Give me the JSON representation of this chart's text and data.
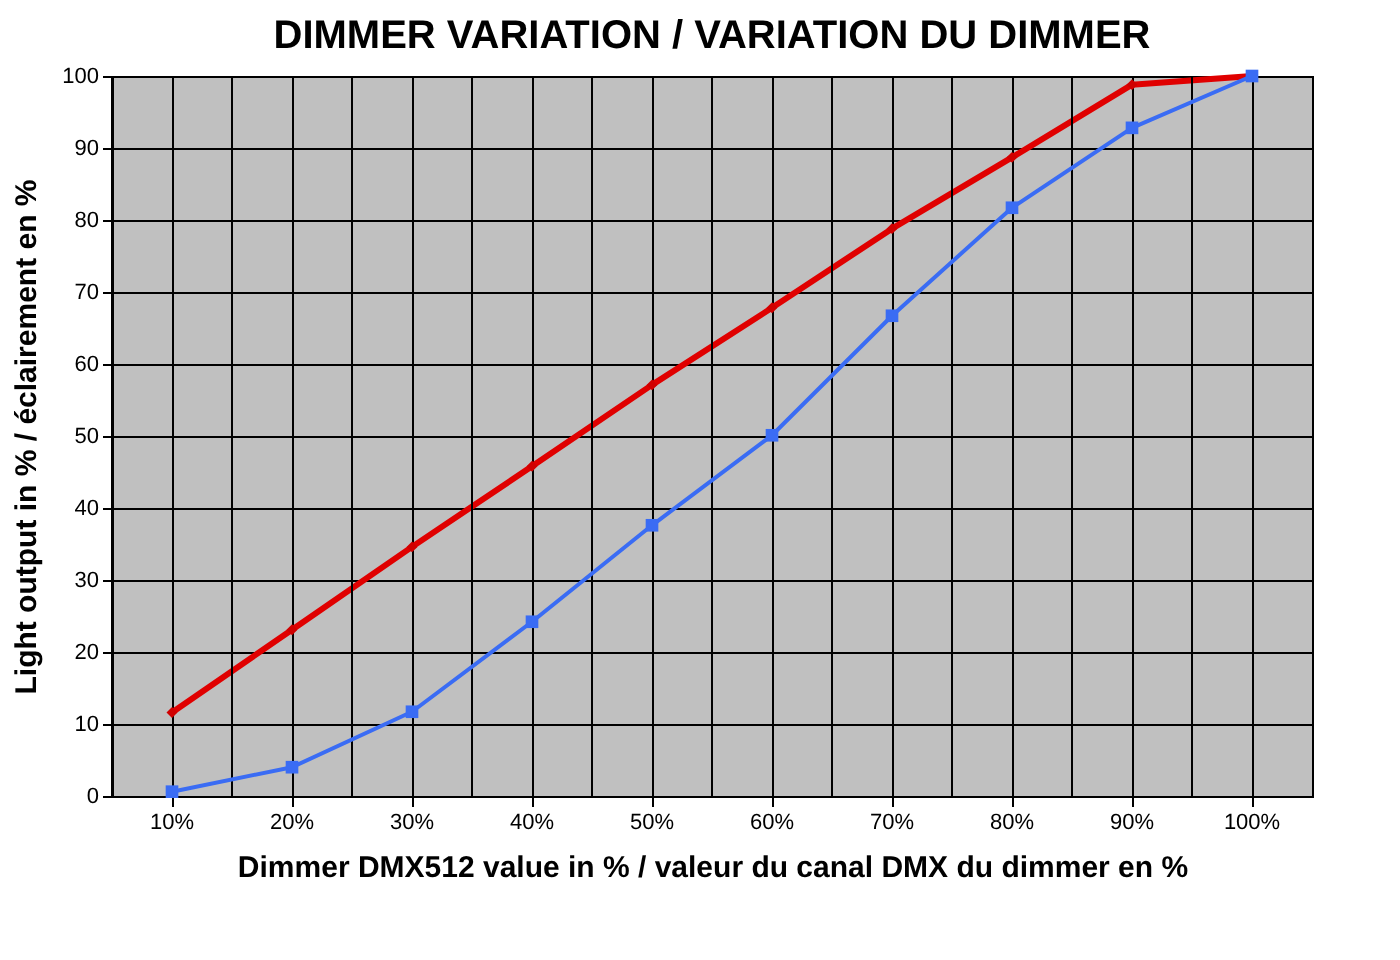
{
  "chart_data": {
    "type": "line",
    "title": "DIMMER VARIATION / VARIATION DU DIMMER",
    "xlabel": "Dimmer DMX512 value in % / valeur du canal DMX du dimmer en %",
    "ylabel": "Light output in % / éclairement en %",
    "categories": [
      "10%",
      "20%",
      "30%",
      "40%",
      "50%",
      "60%",
      "70%",
      "80%",
      "90%",
      "100%"
    ],
    "series": [
      {
        "color": "#e00000",
        "marker": "diamond",
        "values": [
          11.6,
          23.1,
          34.6,
          45.8,
          57.1,
          67.8,
          78.8,
          88.7,
          98.8,
          100
        ]
      },
      {
        "color": "#3a6cf4",
        "marker": "square",
        "values": [
          0.6,
          4.0,
          11.7,
          24.2,
          37.6,
          50.1,
          66.7,
          81.7,
          92.8,
          100
        ]
      }
    ],
    "ylim": [
      0,
      100
    ],
    "yticks": [
      0,
      10,
      20,
      30,
      40,
      50,
      60,
      70,
      80,
      90,
      100
    ],
    "grid": true
  }
}
